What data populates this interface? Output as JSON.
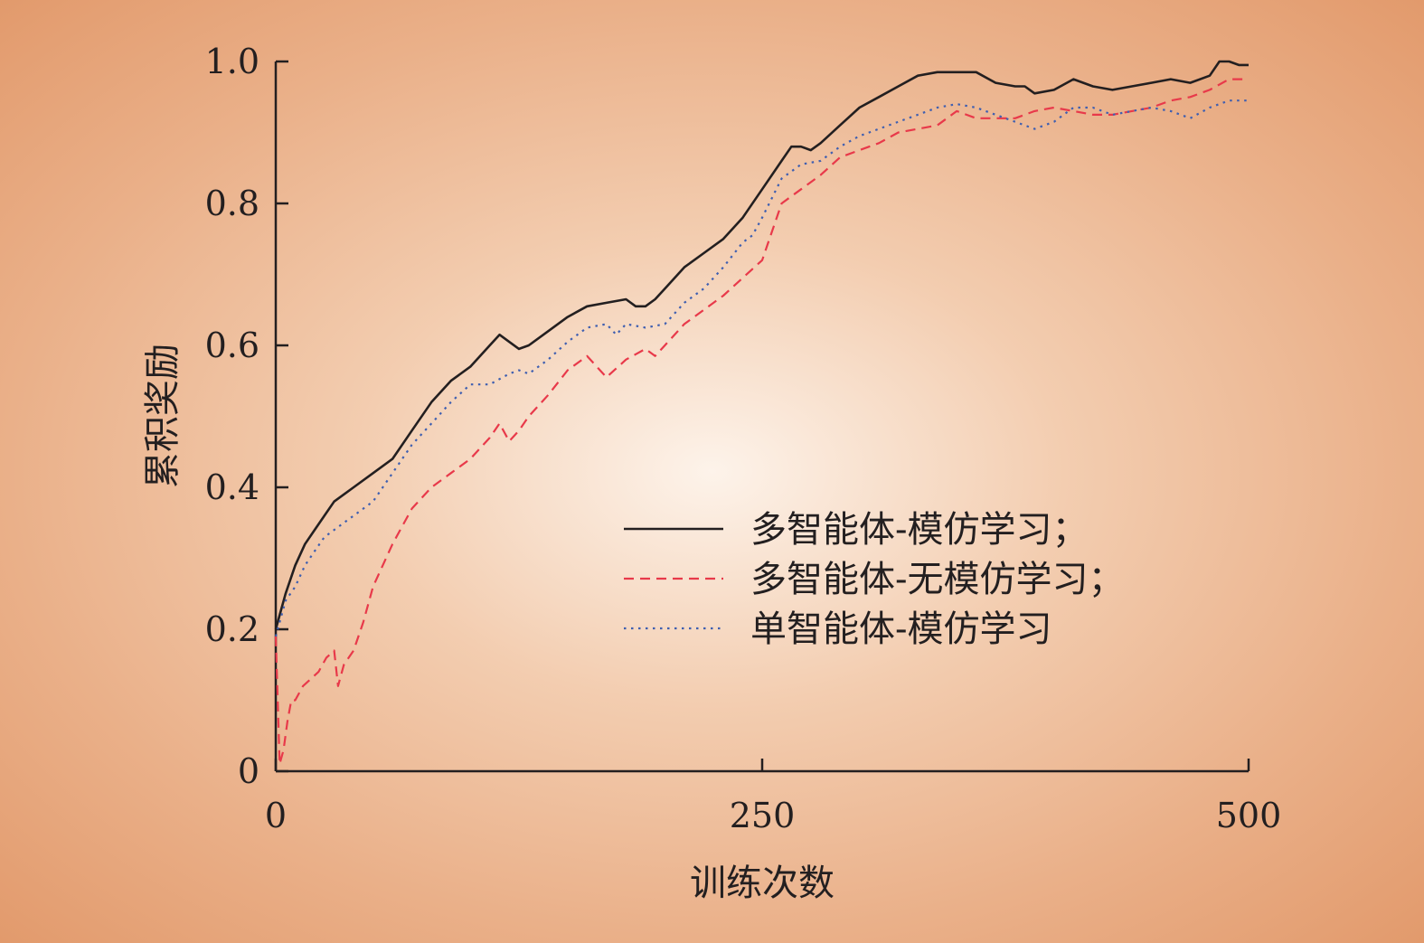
{
  "chart_data": {
    "type": "line",
    "title": "",
    "xlabel": "训练次数",
    "ylabel": "累积奖励",
    "xlim": [
      0,
      500
    ],
    "ylim": [
      0,
      1.0
    ],
    "xticks": [
      0,
      250,
      500
    ],
    "xtick_labels": [
      "0",
      "250",
      "500"
    ],
    "yticks": [
      0,
      0.2,
      0.4,
      0.6,
      0.8,
      1.0
    ],
    "ytick_labels": [
      "0",
      "0.2",
      "0.4",
      "0.6",
      "0.8",
      "1.0"
    ],
    "grid": false,
    "legend_position": "center-right",
    "series": [
      {
        "name": "多智能体-模仿学习；",
        "color": "#231f20",
        "style": "solid",
        "x": [
          0,
          5,
          10,
          15,
          20,
          25,
          30,
          40,
          50,
          60,
          70,
          80,
          90,
          100,
          110,
          115,
          120,
          125,
          130,
          140,
          150,
          160,
          170,
          180,
          185,
          190,
          195,
          200,
          210,
          220,
          230,
          240,
          250,
          260,
          265,
          270,
          275,
          280,
          290,
          300,
          310,
          320,
          330,
          340,
          350,
          360,
          370,
          380,
          385,
          390,
          400,
          410,
          420,
          430,
          440,
          450,
          460,
          470,
          480,
          485,
          490,
          495,
          500
        ],
        "y": [
          0.2,
          0.25,
          0.29,
          0.32,
          0.34,
          0.36,
          0.38,
          0.4,
          0.42,
          0.44,
          0.48,
          0.52,
          0.55,
          0.57,
          0.6,
          0.615,
          0.605,
          0.595,
          0.6,
          0.62,
          0.64,
          0.655,
          0.66,
          0.665,
          0.655,
          0.655,
          0.665,
          0.68,
          0.71,
          0.73,
          0.75,
          0.78,
          0.82,
          0.86,
          0.88,
          0.88,
          0.875,
          0.885,
          0.91,
          0.935,
          0.95,
          0.965,
          0.98,
          0.985,
          0.985,
          0.985,
          0.97,
          0.965,
          0.965,
          0.955,
          0.96,
          0.975,
          0.965,
          0.96,
          0.965,
          0.97,
          0.975,
          0.97,
          0.98,
          1.0,
          1.0,
          0.995,
          0.995
        ]
      },
      {
        "name": "多智能体-无模仿学习；",
        "color": "#e8394a",
        "style": "dashed",
        "x": [
          0,
          2,
          4,
          6,
          8,
          10,
          14,
          18,
          22,
          26,
          30,
          32,
          35,
          40,
          45,
          50,
          60,
          70,
          80,
          90,
          100,
          110,
          115,
          120,
          125,
          130,
          140,
          150,
          160,
          170,
          180,
          190,
          195,
          200,
          210,
          220,
          230,
          240,
          250,
          260,
          270,
          280,
          290,
          300,
          310,
          320,
          330,
          340,
          350,
          360,
          370,
          380,
          390,
          400,
          410,
          420,
          430,
          440,
          450,
          460,
          470,
          480,
          490,
          500
        ],
        "y": [
          0.19,
          0.01,
          0.03,
          0.07,
          0.1,
          0.1,
          0.12,
          0.13,
          0.14,
          0.16,
          0.17,
          0.12,
          0.15,
          0.17,
          0.21,
          0.26,
          0.32,
          0.37,
          0.4,
          0.42,
          0.44,
          0.47,
          0.49,
          0.465,
          0.48,
          0.5,
          0.53,
          0.565,
          0.585,
          0.555,
          0.58,
          0.595,
          0.585,
          0.6,
          0.63,
          0.65,
          0.67,
          0.695,
          0.72,
          0.8,
          0.82,
          0.84,
          0.865,
          0.875,
          0.885,
          0.9,
          0.905,
          0.91,
          0.93,
          0.92,
          0.92,
          0.92,
          0.93,
          0.935,
          0.93,
          0.925,
          0.925,
          0.93,
          0.935,
          0.945,
          0.95,
          0.96,
          0.975,
          0.975
        ]
      },
      {
        "name": "单智能体-模仿学习",
        "color": "#3f5fb0",
        "style": "dotted",
        "x": [
          0,
          5,
          10,
          15,
          20,
          25,
          30,
          40,
          50,
          60,
          70,
          80,
          90,
          100,
          110,
          120,
          125,
          130,
          140,
          150,
          160,
          170,
          175,
          180,
          190,
          200,
          210,
          220,
          230,
          240,
          245,
          250,
          260,
          270,
          280,
          290,
          300,
          310,
          320,
          330,
          340,
          350,
          360,
          370,
          380,
          390,
          400,
          410,
          420,
          430,
          440,
          450,
          460,
          470,
          480,
          490,
          500
        ],
        "y": [
          0.19,
          0.24,
          0.26,
          0.29,
          0.31,
          0.33,
          0.34,
          0.36,
          0.38,
          0.42,
          0.46,
          0.49,
          0.52,
          0.545,
          0.545,
          0.56,
          0.565,
          0.56,
          0.58,
          0.605,
          0.625,
          0.63,
          0.615,
          0.63,
          0.625,
          0.63,
          0.66,
          0.68,
          0.71,
          0.745,
          0.755,
          0.78,
          0.835,
          0.855,
          0.86,
          0.88,
          0.895,
          0.905,
          0.915,
          0.925,
          0.935,
          0.94,
          0.935,
          0.925,
          0.915,
          0.905,
          0.915,
          0.935,
          0.935,
          0.925,
          0.93,
          0.935,
          0.93,
          0.92,
          0.935,
          0.945,
          0.945
        ]
      }
    ]
  }
}
